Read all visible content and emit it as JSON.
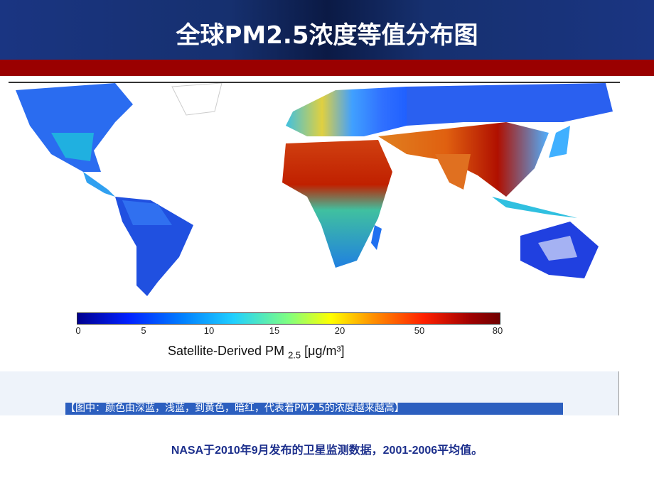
{
  "slide": {
    "title": "全球PM2.5浓度等值分布图",
    "colorbar": {
      "ticks": [
        "0",
        "5",
        "10",
        "15",
        "20",
        "50",
        "80"
      ],
      "label": "Satellite-Derived PM",
      "label_sub": "2.5",
      "label_unit": " [μg/m³]",
      "colors": [
        "#00008f",
        "#0080ff",
        "#80ff80",
        "#ffff00",
        "#ff2000",
        "#700000"
      ]
    },
    "note": "【图中：颜色由深蓝，浅蓝，到黄色，暗红，代表着PM2.5的浓度越来越高】",
    "footer": "NASA于2010年9月发布的卫星监测数据，2001-2006平均值。"
  },
  "colors": {
    "header": "#1a3582",
    "band": "#9a0000",
    "footer_text": "#1c2f8c"
  }
}
